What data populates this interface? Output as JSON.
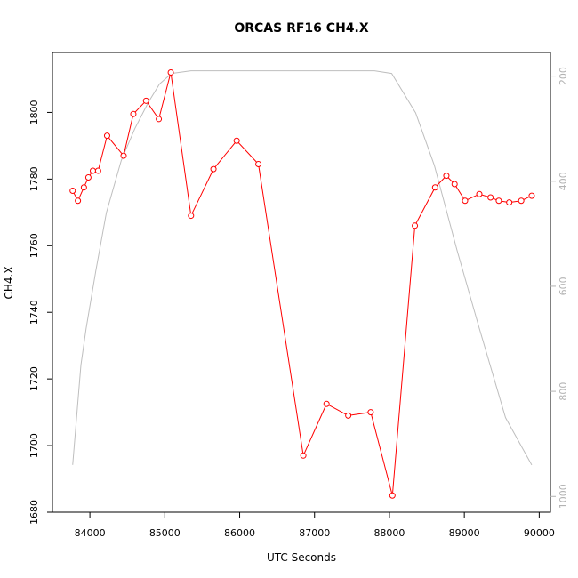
{
  "chart_data": {
    "type": "line",
    "title": "ORCAS RF16 CH4.X",
    "xlabel": "UTC Seconds",
    "ylabel": "CH4.X",
    "xlim": [
      83500,
      90150
    ],
    "ylim": [
      1680,
      1818
    ],
    "y2lim": [
      1030,
      155
    ],
    "x_ticks": [
      84000,
      85000,
      86000,
      87000,
      88000,
      89000,
      90000
    ],
    "y_ticks": [
      1680,
      1700,
      1720,
      1740,
      1760,
      1780,
      1800
    ],
    "y2_ticks": [
      200,
      400,
      600,
      800,
      1000
    ],
    "colors": {
      "series": "#ff0000",
      "secondary": "#bebebe"
    },
    "grid": false,
    "series": [
      {
        "axis": "left",
        "marker": "circle",
        "x": [
          83770,
          83840,
          83920,
          83980,
          84040,
          84110,
          84230,
          84450,
          84580,
          84750,
          84920,
          85080,
          85350,
          85650,
          85960,
          86250,
          86850,
          87160,
          87450,
          87750,
          88040,
          88340,
          88610,
          88760,
          88870,
          89010,
          89200,
          89350,
          89460,
          89600,
          89760,
          89900
        ],
        "values": [
          1776.5,
          1773.5,
          1777.5,
          1780.5,
          1782.5,
          1782.5,
          1793,
          1787,
          1799.5,
          1803.5,
          1798,
          1812,
          1769,
          1783,
          1791.5,
          1784.5,
          1697,
          1712.5,
          1709,
          1710,
          1685,
          1766,
          1777.5,
          1781,
          1778.5,
          1773.5,
          1775.5,
          1774.5,
          1773.5,
          1773,
          1773.5,
          1775
        ]
      },
      {
        "axis": "right",
        "x": [
          83770,
          83880,
          83950,
          84080,
          84220,
          84420,
          84600,
          84780,
          84930,
          85090,
          85350,
          86000,
          86500,
          87000,
          87500,
          87800,
          88030,
          88350,
          88600,
          88900,
          89200,
          89550,
          89900
        ],
        "values": [
          940,
          750,
          680,
          570,
          460,
          360,
          300,
          250,
          215,
          195,
          190,
          190,
          190,
          190,
          190,
          190,
          195,
          270,
          370,
          530,
          680,
          850,
          940
        ]
      }
    ]
  }
}
